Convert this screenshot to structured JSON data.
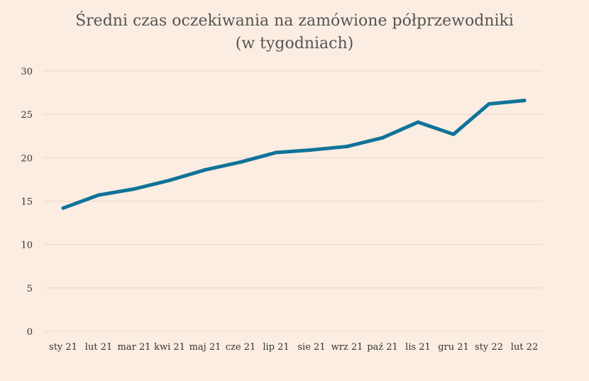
{
  "chart_data": {
    "type": "line",
    "title": "Średni czas oczekiwania na zamówione półprzewodniki",
    "subtitle": "(w tygodniach)",
    "xlabel": "",
    "ylabel": "",
    "categories": [
      "sty 21",
      "lut 21",
      "mar 21",
      "kwi 21",
      "maj 21",
      "cze 21",
      "lip 21",
      "sie 21",
      "wrz 21",
      "paź 21",
      "lis 21",
      "gru 21",
      "sty 22",
      "lut 22"
    ],
    "series": [
      {
        "values": [
          14.2,
          15.7,
          16.4,
          17.4,
          18.6,
          19.5,
          20.6,
          20.9,
          21.3,
          22.3,
          24.1,
          22.7,
          26.2,
          26.6
        ]
      }
    ],
    "ylim": [
      0,
      30
    ],
    "yticks": [
      0,
      5,
      10,
      15,
      20,
      25,
      30
    ],
    "grid": true,
    "legend": "none",
    "colors": {
      "line": "#0f7399",
      "grid": "#e6d6cb",
      "background": "#fbede2",
      "text": "#333333",
      "title": "#555555"
    }
  }
}
